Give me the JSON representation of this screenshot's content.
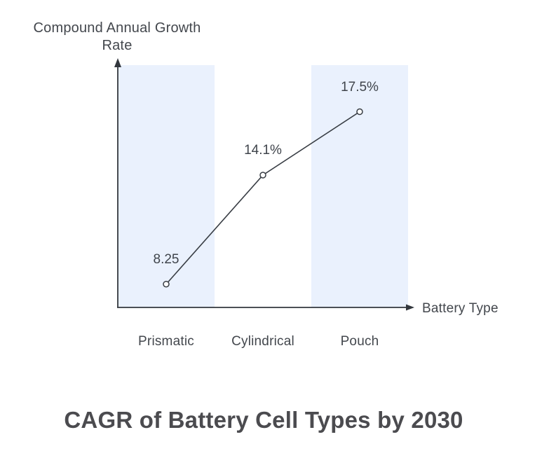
{
  "chart_data": {
    "type": "line",
    "title": "CAGR of Battery Cell Types by 2030",
    "xlabel": "Battery Type",
    "ylabel": "Compound Annual Growth Rate",
    "ylabel_lines": [
      "Compound Annual Growth",
      "Rate"
    ],
    "categories": [
      "Prismatic",
      "Cylindrical",
      "Pouch"
    ],
    "values": [
      8.25,
      14.1,
      17.5
    ],
    "point_labels": [
      "8.25",
      "14.1%",
      "17.5%"
    ],
    "ylim": [
      7,
      20
    ],
    "highlighted_categories": [
      0,
      2
    ],
    "grid": false,
    "legend": false,
    "colors": {
      "band": "#EAF1FD",
      "line": "#383D44",
      "marker_fill": "#FFFFFF",
      "axis": "#33373D",
      "text": "#3F444B",
      "title": "#4B4B4F"
    }
  }
}
